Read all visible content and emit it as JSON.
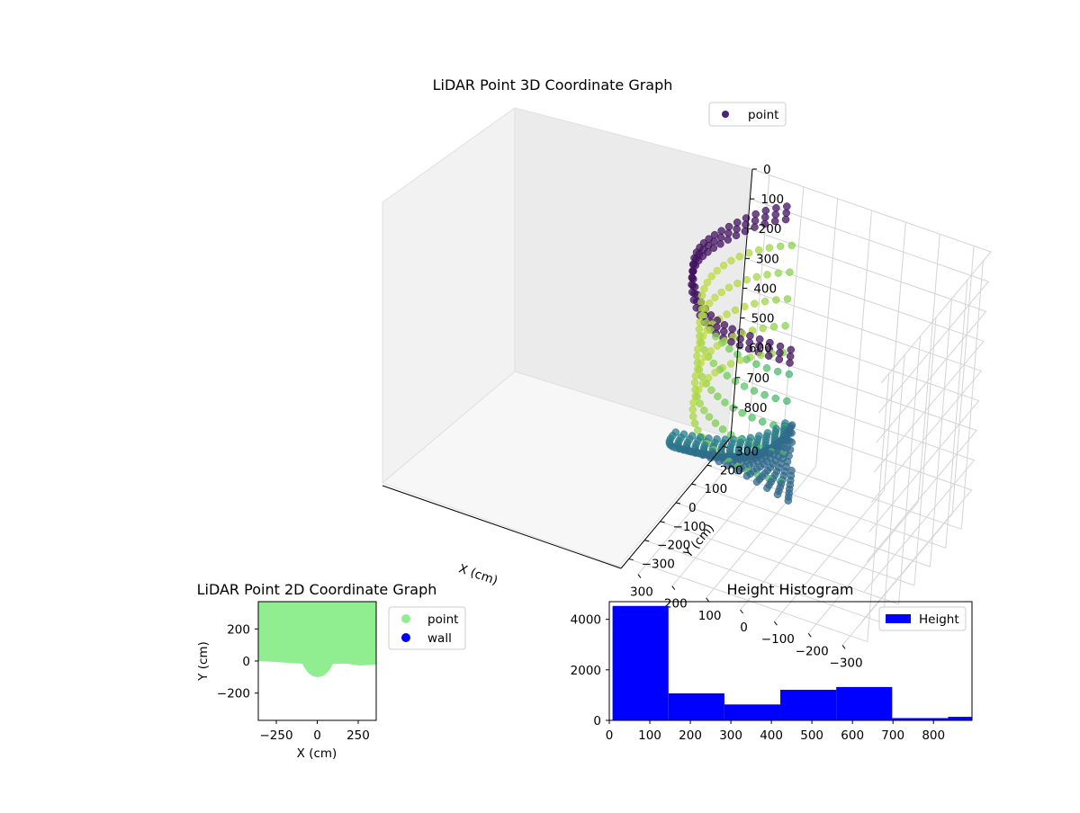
{
  "chart_data": [
    {
      "type": "scatter",
      "title": "LiDAR Point 3D Coordinate Graph",
      "xlabel": "X (cm)",
      "ylabel": "Y (cm)",
      "zlabel": "",
      "x_ticks": [
        "−300",
        "−200",
        "−100",
        "0",
        "100",
        "200",
        "300"
      ],
      "y_ticks": [
        "−300",
        "−200",
        "−100",
        "0",
        "100",
        "200",
        "300"
      ],
      "z_ticks": [
        "0",
        "100",
        "200",
        "300",
        "400",
        "500",
        "600",
        "700",
        "800"
      ],
      "xlim": [
        -350,
        350
      ],
      "ylim": [
        -350,
        350
      ],
      "zlim": [
        0,
        900
      ],
      "z_inverted": true,
      "colormap": "viridis",
      "legend": {
        "entries": [
          "point"
        ],
        "position": "upper-right"
      },
      "series": [
        {
          "name": "point",
          "color": "#482475"
        }
      ]
    },
    {
      "type": "scatter",
      "title": "LiDAR Point 2D Coordinate Graph",
      "xlabel": "X (cm)",
      "ylabel": "Y (cm)",
      "x_ticks": [
        "−250",
        "0",
        "250"
      ],
      "y_ticks": [
        "200",
        "0",
        "−200"
      ],
      "xlim": [
        -360,
        360
      ],
      "ylim": [
        -370,
        370
      ],
      "legend": {
        "entries": [
          "point",
          "wall"
        ],
        "position": "outside-right"
      },
      "series": [
        {
          "name": "point",
          "color": "#90ee90"
        },
        {
          "name": "wall",
          "color": "#0000ff"
        }
      ]
    },
    {
      "type": "bar",
      "title": "Height Histogram",
      "xlabel": "",
      "ylabel": "",
      "x_ticks": [
        "0",
        "100",
        "200",
        "300",
        "400",
        "500",
        "600",
        "700",
        "800"
      ],
      "y_ticks": [
        "0",
        "2000",
        "4000"
      ],
      "xlim": [
        0,
        895
      ],
      "ylim": [
        0,
        4700
      ],
      "bin_edges": [
        8,
        146,
        284,
        422,
        560,
        698,
        836,
        974
      ],
      "values": [
        4530,
        1070,
        630,
        1210,
        1320,
        90,
        140
      ],
      "color": "#0000ff",
      "legend": {
        "entries": [
          "Height"
        ],
        "position": "upper-right"
      },
      "series": [
        {
          "name": "Height",
          "color": "#0000ff"
        }
      ]
    }
  ]
}
